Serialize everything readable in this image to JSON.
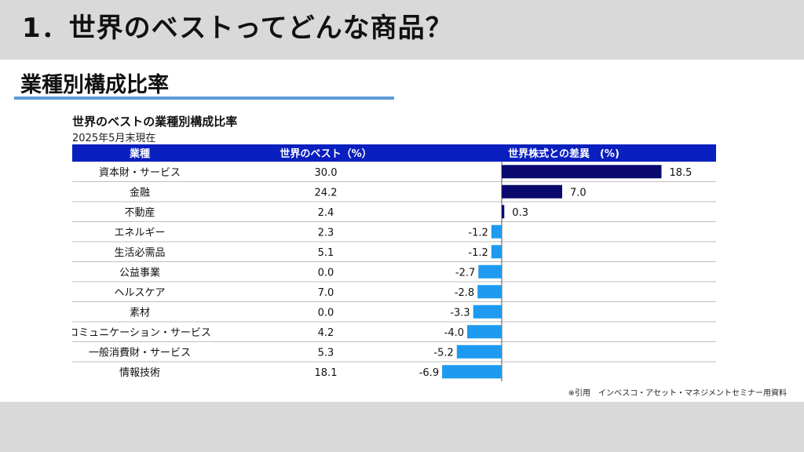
{
  "page": {
    "main_title": "1．世界のベストってどんな商品？",
    "subtitle": "業種別構成比率",
    "footnote": "※引用　インベスコ・アセット・マネジメントセミナー用資料"
  },
  "chart_data": {
    "type": "table",
    "title": "世界のベストの業種別構成比率",
    "subtitle": "2025年5月末現在",
    "columns": [
      "業種",
      "世界のベスト（%）",
      "世界株式との差異　(%)"
    ],
    "categories": [
      "資本財・サービス",
      "金融",
      "不動産",
      "エネルギー",
      "生活必需品",
      "公益事業",
      "ヘルスケア",
      "素材",
      "コミュニケーション・サービス",
      "一般消費財・サービス",
      "情報技術"
    ],
    "series": [
      {
        "name": "世界のベスト（%）",
        "values": [
          "30.0",
          "24.2",
          "2.4",
          "2.3",
          "5.1",
          "0.0",
          "7.0",
          "0.0",
          "4.2",
          "5.3",
          "18.1"
        ]
      },
      {
        "name": "世界株式との差異　(%)",
        "values": [
          18.5,
          7.0,
          0.3,
          -1.2,
          -1.2,
          -2.7,
          -2.8,
          -3.3,
          -4.0,
          -5.2,
          -6.9
        ]
      }
    ],
    "colors": {
      "header": "#0a1fbf",
      "positive_bar": "#0a0a6e",
      "negative_bar": "#1e9bf0",
      "row_line": "#bfbfbf"
    }
  }
}
